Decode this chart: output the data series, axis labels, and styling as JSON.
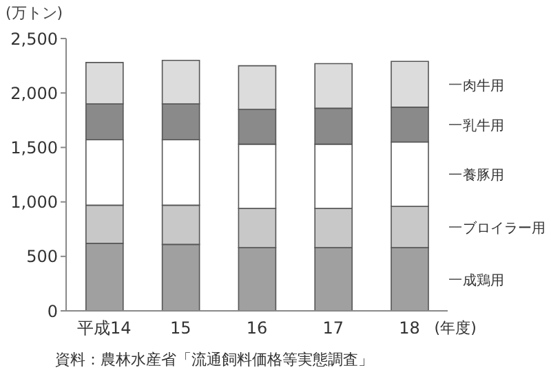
{
  "chart_data": {
    "type": "bar",
    "stacked": true,
    "ylabel": "(万トン)",
    "xlabel": "(年度)",
    "categories": [
      "平成14",
      "15",
      "16",
      "17",
      "18"
    ],
    "series": [
      {
        "name": "成鶏用",
        "color": "#a0a0a0",
        "values": [
          620,
          610,
          580,
          580,
          580
        ]
      },
      {
        "name": "ブロイラー用",
        "color": "#c8c8c8",
        "values": [
          350,
          360,
          360,
          360,
          380
        ]
      },
      {
        "name": "養豚用",
        "color": "#ffffff",
        "values": [
          600,
          600,
          590,
          590,
          590
        ]
      },
      {
        "name": "乳牛用",
        "color": "#8a8a8a",
        "values": [
          330,
          330,
          320,
          330,
          320
        ]
      },
      {
        "name": "肉牛用",
        "color": "#dcdcdc",
        "values": [
          380,
          400,
          400,
          410,
          420
        ]
      }
    ],
    "ylim": [
      0,
      2500
    ],
    "yticks": [
      0,
      500,
      {
        "value": 1000,
        "label": "1,000"
      },
      {
        "value": 1500,
        "label": "1,500"
      },
      {
        "value": 2000,
        "label": "2,000"
      },
      {
        "value": 2500,
        "label": "2,500"
      }
    ],
    "grid": false,
    "legend": "right",
    "annotations": [
      "資料：農林水産省「流通飼料価格等実態調査」"
    ]
  }
}
